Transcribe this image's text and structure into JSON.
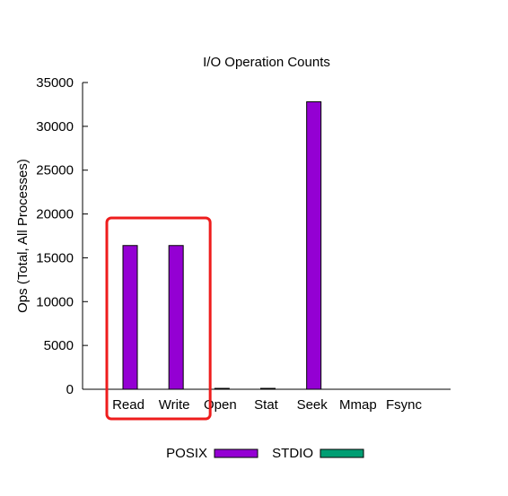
{
  "chart_data": {
    "type": "bar",
    "title": "I/O Operation Counts",
    "xlabel": "",
    "ylabel": "Ops (Total, All Processes)",
    "ylim": [
      0,
      35000
    ],
    "yticks": [
      0,
      5000,
      10000,
      15000,
      20000,
      25000,
      30000,
      35000
    ],
    "categories": [
      "Read",
      "Write",
      "Open",
      "Stat",
      "Seek",
      "Mmap",
      "Fsync"
    ],
    "series": [
      {
        "name": "POSIX",
        "color": "#9400d3",
        "values": [
          16400,
          16400,
          60,
          60,
          32800,
          0,
          0
        ]
      },
      {
        "name": "STDIO",
        "color": "#009e73",
        "values": [
          0,
          0,
          0,
          0,
          0,
          0,
          0
        ]
      }
    ],
    "legend_position": "bottom",
    "grid": false,
    "highlight": {
      "categories": [
        "Read",
        "Write"
      ],
      "color": "#ee1c1c"
    }
  }
}
